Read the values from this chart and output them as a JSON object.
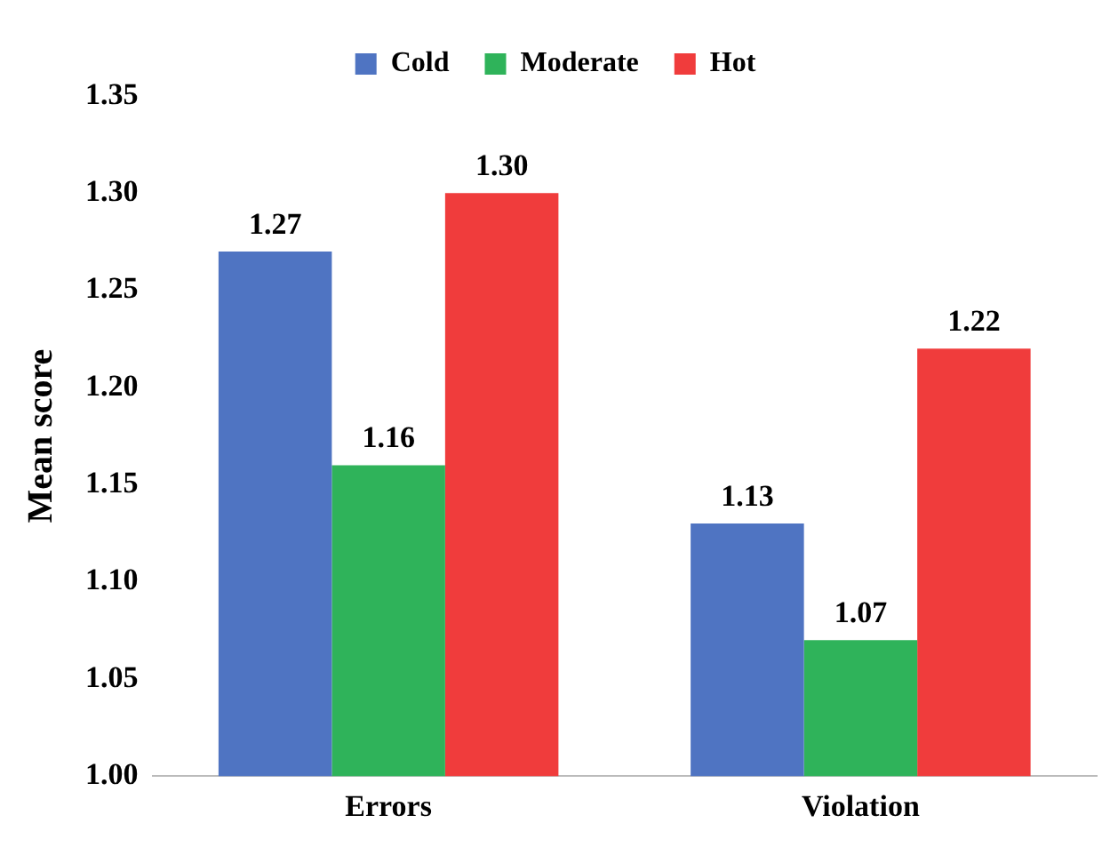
{
  "chart_data": {
    "type": "bar",
    "ylabel": "Mean score",
    "categories": [
      "Errors",
      "Violation"
    ],
    "series": [
      {
        "name": "Cold",
        "color": "#4f74c2",
        "values": [
          1.27,
          1.13
        ],
        "value_labels": [
          "1.27",
          "1.13"
        ]
      },
      {
        "name": "Moderate",
        "color": "#2fb35a",
        "values": [
          1.16,
          1.07
        ],
        "value_labels": [
          "1.16",
          "1.07"
        ]
      },
      {
        "name": "Hot",
        "color": "#f03c3c",
        "values": [
          1.3,
          1.22
        ],
        "value_labels": [
          "1.30",
          "1.22"
        ]
      }
    ],
    "ylim": [
      1.0,
      1.35
    ],
    "yticks": [
      {
        "value": 1.0,
        "label": "1.00"
      },
      {
        "value": 1.05,
        "label": "1.05"
      },
      {
        "value": 1.1,
        "label": "1.10"
      },
      {
        "value": 1.15,
        "label": "1.15"
      },
      {
        "value": 1.2,
        "label": "1.20"
      },
      {
        "value": 1.25,
        "label": "1.25"
      },
      {
        "value": 1.3,
        "label": "1.30"
      },
      {
        "value": 1.35,
        "label": "1.35"
      }
    ],
    "grid": false,
    "legend": "top"
  }
}
